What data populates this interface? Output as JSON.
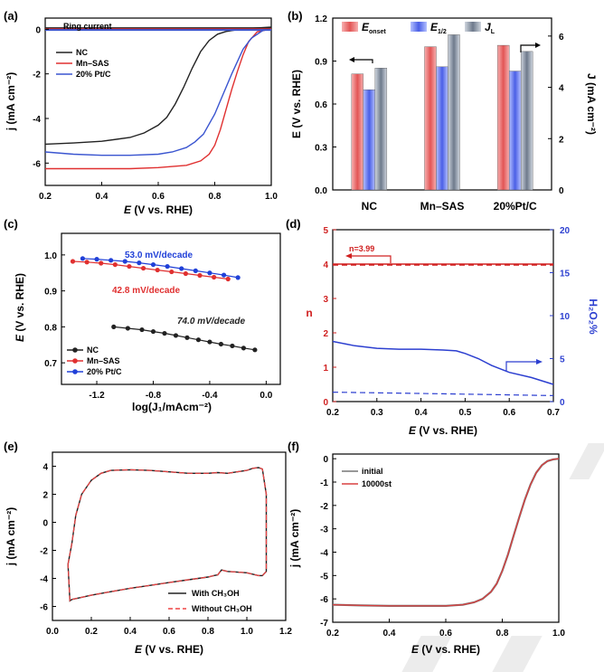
{
  "panels": {
    "a": {
      "label": "(a)",
      "title": "Ring current",
      "xlabel_italic": "E",
      "xlabel_rest": " (V vs. RHE)",
      "ylabel": "j (mA cm⁻²)",
      "xlim": [
        0.2,
        1.0
      ],
      "ylim": [
        -7,
        0.5
      ],
      "xticks": [
        0.2,
        0.4,
        0.6,
        0.8,
        1.0
      ],
      "yticks": [
        0,
        -2,
        -4,
        -6
      ],
      "xtick_labels": [
        "0.2",
        "0.4",
        "0.6",
        "0.8",
        "1.0"
      ],
      "ytick_labels": [
        "0",
        "-2",
        "-4",
        "-6"
      ],
      "legend": [
        "NC",
        "Mn–SAS",
        "20% Pt/C"
      ]
    },
    "b": {
      "label": "(b)",
      "ylabel_left": "E (V vs. RHE)",
      "ylabel_right": "J (mA cm⁻²)",
      "legend": [
        "E_onset",
        "E_1/2",
        "J_L"
      ],
      "legend_main": [
        "E",
        "E",
        "J"
      ],
      "legend_sub": [
        "onset",
        "1/2",
        "L"
      ],
      "ylim_left": [
        0,
        1.2
      ],
      "yticks_left": [
        "0.0",
        "0.3",
        "0.6",
        "0.9",
        "1.2"
      ],
      "ylim_right": [
        0,
        6.7
      ],
      "yticks_right": [
        "0",
        "2",
        "4",
        "6"
      ],
      "categories": [
        "NC",
        "Mn–SAS",
        "20%Pt/C"
      ]
    },
    "c": {
      "label": "(c)",
      "xlabel": "log(J₁/mAcm⁻²)",
      "ylabel_italic": "E",
      "ylabel_rest": " (V vs. RHE)",
      "xlim": [
        -1.45,
        0.1
      ],
      "ylim": [
        0.64,
        1.06
      ],
      "xticks": [
        -1.2,
        -0.8,
        -0.4,
        0.0
      ],
      "yticks": [
        0.7,
        0.8,
        0.9,
        1.0
      ],
      "xtick_labels": [
        "-1.2",
        "-0.8",
        "-0.4",
        "0.0"
      ],
      "ytick_labels": [
        "0.7",
        "0.8",
        "0.9",
        "1.0"
      ],
      "legend": [
        "NC",
        "Mn–SAS",
        "20% Pt/C"
      ],
      "annotations": [
        "53.0 mV/decade",
        "42.8 mV/decade",
        "74.0 mV/decade"
      ]
    },
    "d": {
      "label": "(d)",
      "xlabel_italic": "E",
      "xlabel_rest": " (V vs. RHE)",
      "ylabel_left": "n",
      "ylabel_right": "H₂O₂%",
      "xlim": [
        0.2,
        0.7
      ],
      "ylim_left": [
        0,
        5
      ],
      "ylim_right": [
        0,
        20
      ],
      "xticks": [
        0.2,
        0.3,
        0.4,
        0.5,
        0.6,
        0.7
      ],
      "xtick_labels": [
        "0.2",
        "0.3",
        "0.4",
        "0.5",
        "0.6",
        "0.7"
      ],
      "yticks_left": [
        0,
        1,
        2,
        3,
        4,
        5
      ],
      "ytick_labels_left": [
        "0",
        "1",
        "2",
        "3",
        "4",
        "5"
      ],
      "yticks_right": [
        0,
        5,
        10,
        15,
        20
      ],
      "ytick_labels_right": [
        "0",
        "5",
        "10",
        "15",
        "20"
      ],
      "annotation": "n=3.99"
    },
    "e": {
      "label": "(e)",
      "xlabel_italic": "E",
      "xlabel_rest": " (V vs. RHE)",
      "ylabel": "j (mA cm⁻²)",
      "xlim": [
        0,
        1.2
      ],
      "ylim": [
        -7,
        5
      ],
      "xticks": [
        0.0,
        0.2,
        0.4,
        0.6,
        0.8,
        1.0,
        1.2
      ],
      "xtick_labels": [
        "0.0",
        "0.2",
        "0.4",
        "0.6",
        "0.8",
        "1.0",
        "1.2"
      ],
      "yticks": [
        4,
        2,
        0,
        -2,
        -4,
        -6
      ],
      "ytick_labels": [
        "4",
        "2",
        "0",
        "-2",
        "-4",
        "-6"
      ],
      "legend": [
        "With CH₃OH",
        "Without CH₃OH"
      ]
    },
    "f": {
      "label": "(f)",
      "xlabel_italic": "E",
      "xlabel_rest": " (V vs. RHE)",
      "ylabel": "j (mA cm⁻²)",
      "xlim": [
        0.2,
        1.0
      ],
      "ylim": [
        -7,
        0.2
      ],
      "xticks": [
        0.2,
        0.4,
        0.6,
        0.8,
        1.0
      ],
      "xtick_labels": [
        "0.2",
        "0.4",
        "0.6",
        "0.8",
        "1.0"
      ],
      "yticks": [
        0,
        -1,
        -2,
        -3,
        -4,
        -5,
        -6,
        -7
      ],
      "ytick_labels": [
        "0",
        "-1",
        "-2",
        "-3",
        "-4",
        "-5",
        "-6",
        "-7"
      ],
      "legend": [
        "initial",
        "10000st"
      ]
    }
  },
  "chart_data": [
    {
      "panel": "a",
      "type": "line",
      "title": "Ring current",
      "xlabel": "E (V vs. RHE)",
      "ylabel": "j (mA cm⁻²)",
      "xlim": [
        0.2,
        1.0
      ],
      "ylim": [
        -7,
        0.5
      ],
      "series": [
        {
          "name": "NC",
          "color": "#222222",
          "x": [
            0.2,
            0.3,
            0.4,
            0.5,
            0.55,
            0.6,
            0.63,
            0.66,
            0.69,
            0.72,
            0.75,
            0.78,
            0.81,
            0.84,
            0.87,
            0.9,
            0.94,
            1.0
          ],
          "y": [
            -5.15,
            -5.1,
            -5.02,
            -4.85,
            -4.65,
            -4.3,
            -3.95,
            -3.35,
            -2.6,
            -1.75,
            -1.0,
            -0.5,
            -0.22,
            -0.1,
            -0.04,
            0.0,
            0.05,
            0.1
          ]
        },
        {
          "name": "Mn–SAS",
          "color": "#e03030",
          "x": [
            0.2,
            0.3,
            0.4,
            0.5,
            0.6,
            0.7,
            0.75,
            0.78,
            0.8,
            0.82,
            0.84,
            0.86,
            0.88,
            0.9,
            0.92,
            0.95,
            1.0
          ],
          "y": [
            -6.25,
            -6.25,
            -6.25,
            -6.25,
            -6.2,
            -6.1,
            -5.9,
            -5.6,
            -5.2,
            -4.5,
            -3.6,
            -2.7,
            -1.9,
            -1.15,
            -0.55,
            -0.12,
            0.02
          ]
        },
        {
          "name": "20% Pt/C",
          "color": "#3a55d0",
          "x": [
            0.2,
            0.3,
            0.4,
            0.5,
            0.6,
            0.65,
            0.7,
            0.73,
            0.76,
            0.8,
            0.83,
            0.86,
            0.9,
            0.93,
            0.97,
            1.0
          ],
          "y": [
            -5.5,
            -5.6,
            -5.65,
            -5.65,
            -5.6,
            -5.5,
            -5.3,
            -5.05,
            -4.7,
            -3.8,
            -2.9,
            -2.0,
            -0.9,
            -0.4,
            -0.06,
            0.02
          ]
        },
        {
          "name": "NC ring",
          "color": "#222222",
          "x": [
            0.2,
            0.6,
            1.0
          ],
          "y": [
            0.05,
            0.05,
            0.05
          ]
        },
        {
          "name": "Mn–SAS ring",
          "color": "#e03030",
          "x": [
            0.2,
            0.6,
            1.0
          ],
          "y": [
            0.0,
            0.0,
            0.0
          ]
        },
        {
          "name": "Pt/C ring",
          "color": "#3a55d0",
          "x": [
            0.2,
            0.6,
            1.0
          ],
          "y": [
            -0.03,
            -0.03,
            -0.03
          ]
        }
      ]
    },
    {
      "panel": "b",
      "type": "bar",
      "categories": [
        "NC",
        "Mn–SAS",
        "20%Pt/C"
      ],
      "ylabel": "E (V vs. RHE)",
      "ylabel_right": "J (mA cm⁻²)",
      "series": [
        {
          "name": "E_onset",
          "axis": "left",
          "color": "#e87a7a",
          "values": [
            0.81,
            1.0,
            1.01
          ]
        },
        {
          "name": "E_1/2",
          "axis": "left",
          "color": "#6a7ef0",
          "values": [
            0.7,
            0.86,
            0.83
          ]
        },
        {
          "name": "J_L",
          "axis": "right",
          "color": "#8a96a8",
          "values": [
            4.75,
            6.05,
            5.4
          ]
        }
      ]
    },
    {
      "panel": "c",
      "type": "scatter",
      "xlabel": "log(J₁/mAcm⁻²)",
      "ylabel": "E (V vs. RHE)",
      "xlim": [
        -1.45,
        0.1
      ],
      "ylim": [
        0.64,
        1.06
      ],
      "series": [
        {
          "name": "NC",
          "color": "#222222",
          "x": [
            -1.08,
            -0.98,
            -0.88,
            -0.8,
            -0.72,
            -0.64,
            -0.56,
            -0.48,
            -0.4,
            -0.32,
            -0.24,
            -0.16,
            -0.08
          ],
          "y": [
            0.8,
            0.796,
            0.792,
            0.787,
            0.782,
            0.776,
            0.77,
            0.764,
            0.758,
            0.752,
            0.747,
            0.741,
            0.736
          ]
        },
        {
          "name": "Mn–SAS",
          "color": "#e03030",
          "x": [
            -1.37,
            -1.27,
            -1.17,
            -1.07,
            -0.97,
            -0.87,
            -0.77,
            -0.67,
            -0.57,
            -0.47,
            -0.37,
            -0.27
          ],
          "y": [
            0.982,
            0.98,
            0.977,
            0.973,
            0.968,
            0.963,
            0.958,
            0.953,
            0.948,
            0.943,
            0.938,
            0.933
          ]
        },
        {
          "name": "20% Pt/C",
          "color": "#2040d8",
          "x": [
            -1.3,
            -1.2,
            -1.1,
            -1.0,
            -0.9,
            -0.8,
            -0.7,
            -0.6,
            -0.5,
            -0.4,
            -0.3,
            -0.2
          ],
          "y": [
            0.99,
            0.988,
            0.985,
            0.982,
            0.978,
            0.973,
            0.968,
            0.962,
            0.956,
            0.95,
            0.944,
            0.937
          ]
        }
      ],
      "annotations": [
        "53.0 mV/decade",
        "42.8 mV/decade",
        "74.0 mV/decade"
      ]
    },
    {
      "panel": "d",
      "type": "line",
      "xlabel": "E (V vs. RHE)",
      "ylabel": "n",
      "ylabel_right": "H₂O₂%",
      "xlim": [
        0.2,
        0.7
      ],
      "ylim": [
        0,
        5
      ],
      "ylim_right": [
        0,
        20
      ],
      "series": [
        {
          "name": "n (solid)",
          "axis": "left",
          "color": "#d02020",
          "style": "solid",
          "x": [
            0.2,
            0.7
          ],
          "y": [
            4.0,
            4.0
          ]
        },
        {
          "name": "n (dashed)",
          "axis": "left",
          "color": "#d02020",
          "style": "dashed",
          "x": [
            0.2,
            0.7
          ],
          "y": [
            3.97,
            3.97
          ]
        },
        {
          "name": "H₂O₂% (solid)",
          "axis": "right",
          "color": "#2c3fd0",
          "style": "solid",
          "x": [
            0.2,
            0.25,
            0.3,
            0.35,
            0.4,
            0.45,
            0.48,
            0.5,
            0.53,
            0.56,
            0.6,
            0.65,
            0.7
          ],
          "y": [
            7.0,
            6.5,
            6.2,
            6.1,
            6.1,
            6.0,
            5.9,
            5.6,
            5.0,
            4.2,
            3.4,
            2.8,
            2.0
          ]
        },
        {
          "name": "H₂O₂% (dashed)",
          "axis": "right",
          "color": "#2c3fd0",
          "style": "dashed",
          "x": [
            0.2,
            0.45,
            0.7
          ],
          "y": [
            1.1,
            0.9,
            0.7
          ]
        }
      ],
      "annotations": [
        "n=3.99"
      ]
    },
    {
      "panel": "e",
      "type": "line",
      "xlabel": "E (V vs. RHE)",
      "ylabel": "j (mA cm⁻²)",
      "xlim": [
        0,
        1.2
      ],
      "ylim": [
        -7,
        5
      ],
      "series": [
        {
          "name": "With CH₃OH",
          "color": "#222222",
          "style": "solid",
          "x": [
            0.08,
            0.1,
            0.12,
            0.15,
            0.2,
            0.25,
            0.3,
            0.4,
            0.5,
            0.6,
            0.7,
            0.8,
            0.85,
            0.9,
            0.95,
            1.0,
            1.03,
            1.06,
            1.08,
            1.1,
            1.1,
            1.08,
            1.06,
            1.0,
            0.9,
            0.87,
            0.85,
            0.83,
            0.8,
            0.7,
            0.6,
            0.5,
            0.4,
            0.3,
            0.2,
            0.15,
            0.1,
            0.09,
            0.08
          ],
          "y": [
            -3.0,
            -1.5,
            0.5,
            2.0,
            3.0,
            3.5,
            3.7,
            3.75,
            3.7,
            3.6,
            3.5,
            3.5,
            3.55,
            3.5,
            3.6,
            3.7,
            3.85,
            3.9,
            3.8,
            2.0,
            -3.5,
            -3.8,
            -3.8,
            -3.6,
            -3.5,
            -3.4,
            -3.75,
            -3.8,
            -3.9,
            -4.1,
            -4.3,
            -4.5,
            -4.7,
            -4.95,
            -5.2,
            -5.35,
            -5.5,
            -5.6,
            -3.0
          ]
        },
        {
          "name": "Without CH₃OH",
          "color": "#ef4444",
          "style": "dashed",
          "x": [
            0.08,
            0.1,
            0.12,
            0.15,
            0.2,
            0.25,
            0.3,
            0.4,
            0.5,
            0.6,
            0.7,
            0.8,
            0.85,
            0.9,
            0.95,
            1.0,
            1.03,
            1.06,
            1.08,
            1.1,
            1.1,
            1.08,
            1.06,
            1.0,
            0.9,
            0.87,
            0.85,
            0.83,
            0.8,
            0.7,
            0.6,
            0.5,
            0.4,
            0.3,
            0.2,
            0.15,
            0.1,
            0.09,
            0.08
          ],
          "y": [
            -3.0,
            -1.5,
            0.5,
            2.0,
            3.0,
            3.5,
            3.7,
            3.75,
            3.7,
            3.6,
            3.5,
            3.5,
            3.55,
            3.5,
            3.6,
            3.7,
            3.85,
            3.9,
            3.8,
            2.0,
            -3.5,
            -3.8,
            -3.8,
            -3.6,
            -3.5,
            -3.4,
            -3.75,
            -3.8,
            -3.9,
            -4.1,
            -4.3,
            -4.5,
            -4.7,
            -4.95,
            -5.2,
            -5.35,
            -5.5,
            -5.6,
            -3.0
          ]
        }
      ]
    },
    {
      "panel": "f",
      "type": "line",
      "xlabel": "E (V vs. RHE)",
      "ylabel": "j (mA cm⁻²)",
      "xlim": [
        0.2,
        1.0
      ],
      "ylim": [
        -7,
        0.2
      ],
      "series": [
        {
          "name": "initial",
          "color": "#777777",
          "x": [
            0.2,
            0.3,
            0.4,
            0.5,
            0.6,
            0.66,
            0.7,
            0.73,
            0.76,
            0.78,
            0.8,
            0.82,
            0.84,
            0.86,
            0.88,
            0.9,
            0.92,
            0.94,
            0.96,
            0.98,
            1.0
          ],
          "y": [
            -6.25,
            -6.28,
            -6.3,
            -6.3,
            -6.3,
            -6.25,
            -6.15,
            -6.0,
            -5.7,
            -5.35,
            -4.8,
            -4.1,
            -3.3,
            -2.5,
            -1.75,
            -1.1,
            -0.6,
            -0.28,
            -0.1,
            -0.03,
            0.0
          ]
        },
        {
          "name": "10000st",
          "color": "#d94040",
          "x": [
            0.2,
            0.3,
            0.4,
            0.5,
            0.6,
            0.66,
            0.7,
            0.73,
            0.76,
            0.78,
            0.8,
            0.82,
            0.84,
            0.86,
            0.88,
            0.9,
            0.92,
            0.94,
            0.96,
            0.98,
            1.0
          ],
          "y": [
            -6.25,
            -6.28,
            -6.3,
            -6.3,
            -6.3,
            -6.25,
            -6.15,
            -6.0,
            -5.7,
            -5.35,
            -4.8,
            -4.1,
            -3.3,
            -2.5,
            -1.75,
            -1.1,
            -0.6,
            -0.28,
            -0.1,
            -0.03,
            0.0
          ]
        }
      ]
    }
  ]
}
